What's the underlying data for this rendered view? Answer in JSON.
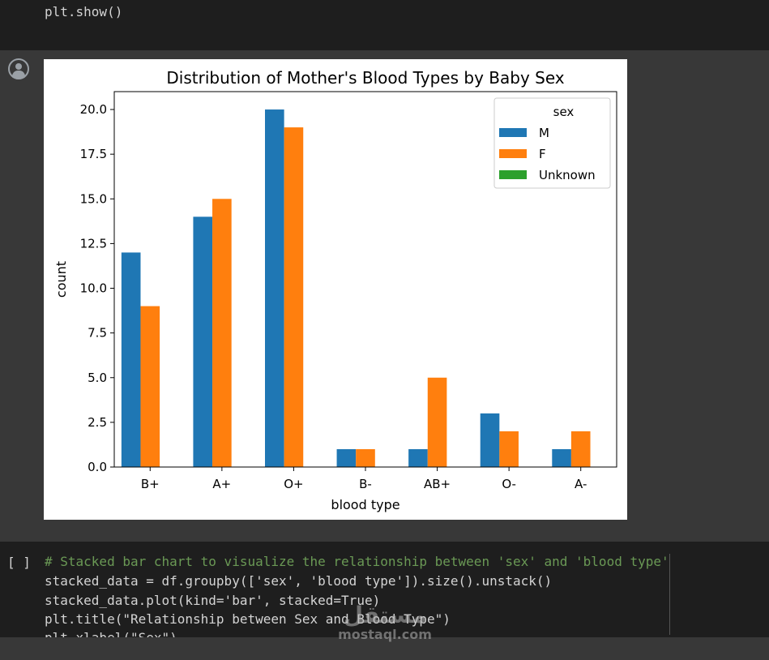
{
  "cells": {
    "top_code": "plt.show()",
    "run_marker": "[ ]",
    "bottom_code": [
      "# Stacked bar chart to visualize the relationship between 'sex' and 'blood type'",
      "stacked_data = df.groupby(['sex', 'blood type']).size().unstack()",
      "stacked_data.plot(kind='bar', stacked=True)",
      "plt.title(\"Relationship between Sex and Blood Type\")",
      "plt.xlabel(\"Sex\")"
    ]
  },
  "watermark": {
    "arabic": "مستقل",
    "latin": "mostaql.com"
  },
  "colors": {
    "M": "#1f77b4",
    "F": "#ff7f0e",
    "Unknown": "#2ca02c"
  },
  "chart_data": {
    "type": "bar",
    "title": "Distribution of Mother's Blood Types by Baby Sex",
    "xlabel": "blood type",
    "ylabel": "count",
    "categories": [
      "B+",
      "A+",
      "O+",
      "B-",
      "AB+",
      "O-",
      "A-"
    ],
    "series": [
      {
        "name": "M",
        "values": [
          12,
          14,
          20,
          1,
          1,
          3,
          1
        ]
      },
      {
        "name": "F",
        "values": [
          9,
          15,
          19,
          1,
          5,
          2,
          2
        ]
      },
      {
        "name": "Unknown",
        "values": [
          0,
          0,
          0,
          0,
          0,
          0,
          0
        ]
      }
    ],
    "ylim": [
      0,
      21
    ],
    "yticks": [
      "0.0",
      "2.5",
      "5.0",
      "7.5",
      "10.0",
      "12.5",
      "15.0",
      "17.5",
      "20.0"
    ],
    "legend_title": "sex",
    "legend_position": "top-right",
    "grid": false
  }
}
